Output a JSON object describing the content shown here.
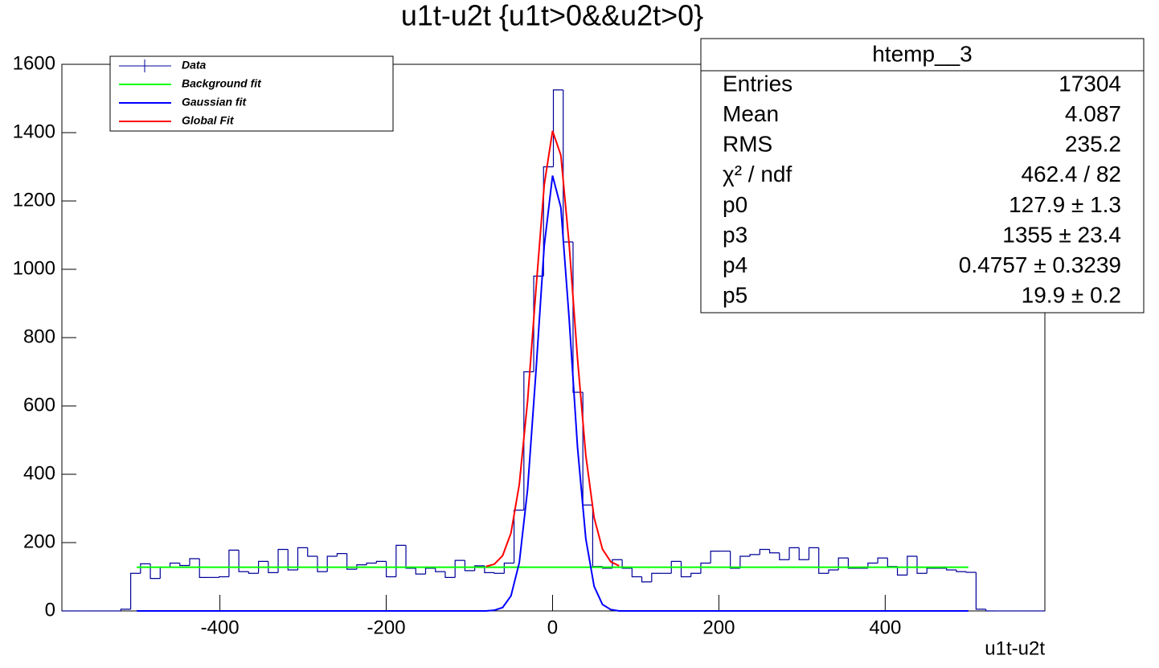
{
  "chart_data": {
    "type": "histogram",
    "title": "u1t-u2t {u1t>0&&u2t>0}",
    "x_label": "u1t-u2t",
    "xlim": [
      -590,
      592
    ],
    "ylim": [
      0,
      1600
    ],
    "xticks": [
      -400,
      -200,
      0,
      200,
      400
    ],
    "yticks": [
      0,
      200,
      400,
      600,
      800,
      1000,
      1200,
      1400,
      1600
    ],
    "grid": false,
    "legend": "top-left",
    "bins": [
      -590,
      -578.18,
      -566.36,
      -554.54,
      -542.72,
      -530.9,
      -519.08,
      -507.26,
      -495.44,
      -483.62,
      -471.8,
      -459.98,
      -448.16,
      -436.34,
      -424.52,
      -412.7,
      -400.88,
      -389.06,
      -377.24,
      -365.42,
      -353.6,
      -341.78,
      -329.96,
      -318.14,
      -306.32,
      -294.5,
      -282.68,
      -270.86,
      -259.04,
      -247.22,
      -235.4,
      -223.58,
      -211.76,
      -199.94,
      -188.12,
      -176.3,
      -164.48,
      -152.66,
      -140.84,
      -129.02,
      -117.2,
      -105.38,
      -93.56,
      -81.74,
      -69.92,
      -58.1,
      -46.28,
      -34.46,
      -22.64,
      -10.82,
      1,
      12.82,
      24.64,
      36.46,
      48.28,
      60.1,
      71.92,
      83.74,
      95.56,
      107.38,
      119.2,
      131.02,
      142.84,
      154.66,
      166.48,
      178.3,
      190.12,
      201.94,
      213.76,
      225.58,
      237.4,
      249.22,
      261.04,
      272.86,
      284.68,
      296.5,
      308.32,
      320.14,
      331.96,
      343.78,
      355.6,
      367.42,
      379.24,
      391.06,
      402.88,
      414.7,
      426.52,
      438.34,
      450.16,
      461.98,
      473.8,
      485.62,
      497.44,
      509.26,
      521.08,
      532.9,
      544.72,
      556.54,
      568.36,
      580.18,
      592
    ],
    "series": [
      {
        "name": "Data",
        "type": "histogram",
        "color": "#000099",
        "values": [
          0,
          0,
          0,
          0,
          0,
          0,
          5,
          110,
          138,
          95,
          128,
          140,
          133,
          153,
          98,
          98,
          100,
          178,
          115,
          110,
          145,
          112,
          180,
          120,
          185,
          160,
          115,
          160,
          168,
          122,
          135,
          140,
          145,
          100,
          192,
          125,
          108,
          125,
          115,
          98,
          148,
          118,
          132,
          112,
          110,
          140,
          295,
          700,
          980,
          1300,
          1525,
          1080,
          640,
          310,
          130,
          125,
          150,
          125,
          100,
          85,
          110,
          110,
          145,
          100,
          110,
          140,
          175,
          175,
          125,
          160,
          165,
          180,
          170,
          150,
          185,
          150,
          185,
          110,
          120,
          155,
          125,
          125,
          140,
          155,
          130,
          105,
          160,
          110,
          125,
          125,
          120,
          115,
          113,
          5,
          0,
          0,
          0,
          0,
          0,
          0
        ]
      },
      {
        "name": "Background fit",
        "type": "line",
        "color": "#00ff00",
        "x": [
          -500,
          500
        ],
        "values": [
          127.9,
          127.9
        ]
      },
      {
        "name": "Gaussian fit",
        "type": "line",
        "color": "#0000ff",
        "x": [
          -500,
          -100,
          -90,
          -80,
          -70,
          -60,
          -50,
          -40,
          -30,
          -20,
          -10,
          0,
          10,
          20,
          30,
          40,
          50,
          60,
          70,
          80,
          90,
          100,
          500
        ],
        "values": [
          0,
          0,
          0,
          0,
          2,
          10,
          44,
          141,
          356,
          699,
          1069,
          1274,
          1181,
          854,
          480,
          211,
          72,
          19,
          4,
          0,
          0,
          0,
          0
        ]
      },
      {
        "name": "Global Fit",
        "type": "line",
        "color": "#ff0000",
        "x": [
          -80,
          -70,
          -60,
          -50,
          -40,
          -30,
          -20,
          -10,
          0,
          10,
          20,
          30,
          40,
          50,
          60,
          70,
          80
        ],
        "values": [
          130,
          137,
          162,
          228,
          370,
          615,
          939,
          1247,
          1405,
          1334,
          1072,
          739,
          455,
          273,
          181,
          144,
          132
        ]
      }
    ],
    "stats": {
      "title": "htemp__3",
      "rows": [
        [
          "Entries",
          "17304"
        ],
        [
          "Mean",
          "4.087"
        ],
        [
          "RMS",
          "235.2"
        ],
        [
          "χ² / ndf",
          "462.4 / 82"
        ],
        [
          "p0",
          "127.9 ± 1.3"
        ],
        [
          "p3",
          "1355 ± 23.4"
        ],
        [
          "p4",
          "0.4757 ± 0.3239"
        ],
        [
          "p5",
          "19.9 ± 0.2"
        ]
      ]
    }
  }
}
